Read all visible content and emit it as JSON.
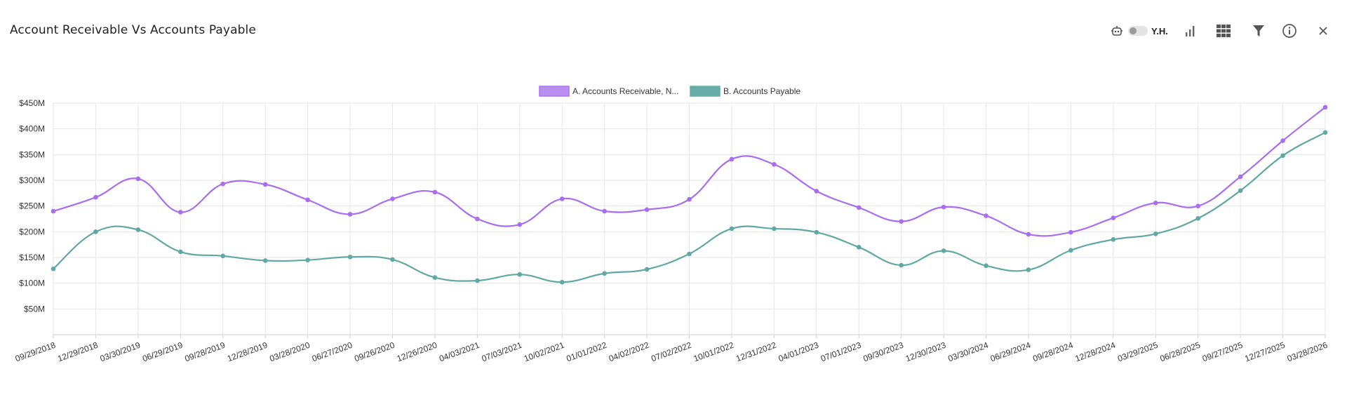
{
  "header": {
    "title": "Account Receivable Vs Accounts Payable",
    "toggle_label": "Y.H."
  },
  "toolbar": {
    "icons": [
      "robot-icon",
      "toggle-switch",
      "bar-chart-icon",
      "grid-icon",
      "filter-icon",
      "info-icon",
      "close-icon"
    ]
  },
  "colors": {
    "series_a": "#a86df0",
    "series_a_fill": "#b68af2",
    "series_b": "#5fa8a3",
    "series_b_fill": "#5fa8a3",
    "grid": "#e6e6e6",
    "icon": "#555555"
  },
  "chart_data": {
    "type": "line",
    "title": "",
    "xlabel": "",
    "ylabel": "",
    "ylim": [
      0,
      450
    ],
    "y_ticks": [
      "$50M",
      "$100M",
      "$150M",
      "$200M",
      "$250M",
      "$300M",
      "$350M",
      "$400M",
      "$450M"
    ],
    "y_tick_values": [
      50,
      100,
      150,
      200,
      250,
      300,
      350,
      400,
      450
    ],
    "grid": true,
    "legend_position": "top-center",
    "x": [
      "09/29/2018",
      "12/29/2018",
      "03/30/2019",
      "06/29/2019",
      "09/28/2019",
      "12/28/2019",
      "03/28/2020",
      "06/27/2020",
      "09/26/2020",
      "12/26/2020",
      "04/03/2021",
      "07/03/2021",
      "10/02/2021",
      "01/01/2022",
      "04/02/2022",
      "07/02/2022",
      "10/01/2022",
      "12/31/2022",
      "04/01/2023",
      "07/01/2023",
      "09/30/2023",
      "12/30/2023",
      "03/30/2024",
      "06/29/2024",
      "09/28/2024",
      "12/28/2024",
      "03/29/2025",
      "06/28/2025",
      "09/27/2025",
      "12/27/2025",
      "03/28/2026"
    ],
    "series": [
      {
        "name": "A. Accounts Receivable, N...",
        "values": [
          240,
          267,
          303,
          238,
          293,
          292,
          262,
          234,
          264,
          277,
          225,
          214,
          264,
          240,
          243,
          263,
          341,
          331,
          279,
          247,
          220,
          248,
          231,
          195,
          199,
          227,
          256,
          250,
          307,
          377,
          442
        ]
      },
      {
        "name": "B. Accounts Payable",
        "values": [
          128,
          200,
          204,
          161,
          153,
          144,
          145,
          151,
          146,
          111,
          105,
          117,
          102,
          119,
          127,
          157,
          206,
          206,
          199,
          170,
          135,
          163,
          134,
          126,
          164,
          185,
          196,
          226,
          280,
          348,
          393
        ]
      }
    ]
  }
}
